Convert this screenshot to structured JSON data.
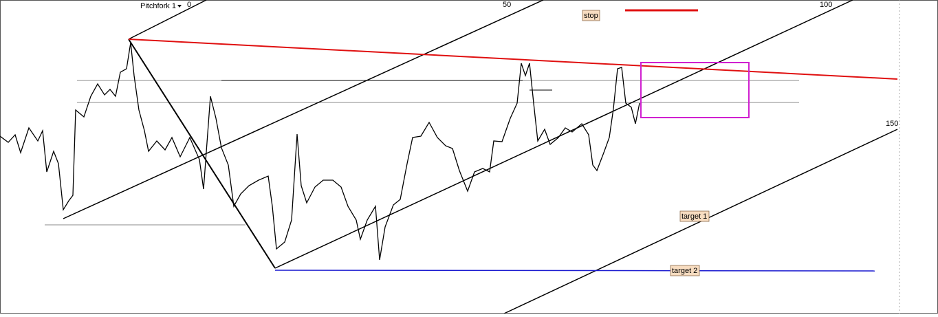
{
  "toolbar": {
    "label": "Pitchfork 1"
  },
  "pitchfork_levels": [
    "0",
    "50",
    "100",
    "150"
  ],
  "annotations": {
    "stop": "stop",
    "target_1": "target 1",
    "target_2": "target 2"
  }
}
